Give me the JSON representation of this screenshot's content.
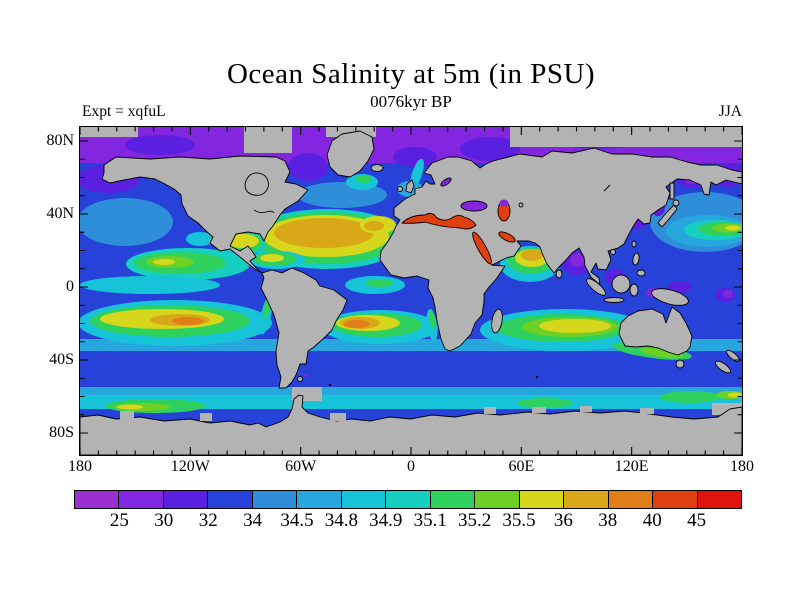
{
  "title": "Ocean Salinity at 5m (in PSU)",
  "subtitle": "0076kyr BP",
  "experiment": "Expt = xqfuL",
  "season": "JJA",
  "chart_data": {
    "type": "heatmap",
    "title": "Ocean Salinity at 5m (in PSU)",
    "subtitle": "0076kyr BP",
    "experiment": "xqfuL",
    "season": "JJA",
    "units": "PSU",
    "projection": "equirectangular world map, land masked gray",
    "xlabel_ticks": [
      "180",
      "120W",
      "60W",
      "0",
      "60E",
      "120E",
      "180"
    ],
    "ylabel_ticks": [
      "80N",
      "40N",
      "0",
      "40S",
      "80S"
    ],
    "lon_range_deg": [
      -180,
      180
    ],
    "lat_range_deg": [
      -88,
      88
    ],
    "grid": false,
    "colorbar": {
      "orientation": "horizontal",
      "position": "bottom",
      "boundary_labels": [
        "25",
        "30",
        "32",
        "34",
        "34.5",
        "34.8",
        "34.9",
        "35.1",
        "35.2",
        "35.5",
        "36",
        "38",
        "40",
        "45"
      ],
      "segment_colors": [
        "#9b2fd4",
        "#8226df",
        "#5a1fdf",
        "#2742d9",
        "#2e8ed9",
        "#27a7dd",
        "#16c3d8",
        "#17cfc0",
        "#2ed05e",
        "#6ed024",
        "#d6d61c",
        "#d8a818",
        "#e07f19",
        "#e0400f",
        "#df1410"
      ]
    },
    "land_color": "#b3b3b3",
    "coastline_color": "#000000",
    "regions": [
      {
        "region": "Arctic Ocean",
        "salinity_psu": "25-32"
      },
      {
        "region": "North Atlantic subtropical gyre",
        "salinity_psu": "36-38"
      },
      {
        "region": "Mediterranean Sea",
        "salinity_psu": "40-45"
      },
      {
        "region": "Black Sea",
        "salinity_psu": "25-30"
      },
      {
        "region": "Caspian Sea",
        "salinity_psu": "40-45 (north 25-30)"
      },
      {
        "region": "Red Sea and Persian Gulf",
        "salinity_psu": "40-45"
      },
      {
        "region": "Arabian Sea",
        "salinity_psu": "36-38"
      },
      {
        "region": "Bay of Bengal",
        "salinity_psu": "25-32"
      },
      {
        "region": "North Pacific subpolar / Okhotsk / Bering",
        "salinity_psu": "30-32"
      },
      {
        "region": "Central North Pacific tongue",
        "salinity_psu": "35.2-35.5"
      },
      {
        "region": "Tropical North Pacific patch",
        "salinity_psu": "35.1-35.5"
      },
      {
        "region": "South Pacific gyre",
        "salinity_psu": "35.5-40"
      },
      {
        "region": "South Atlantic gyre",
        "salinity_psu": "35.5-40"
      },
      {
        "region": "South Indian gyre",
        "salinity_psu": "35.5-36"
      },
      {
        "region": "Southern Ocean 35S-55S",
        "salinity_psu": "34-34.5"
      },
      {
        "region": "Antarctic coastal band",
        "salinity_psu": "34.8-35.5"
      },
      {
        "region": "Indonesian seas / west Pacific warm pool",
        "salinity_psu": "25-32"
      }
    ]
  }
}
